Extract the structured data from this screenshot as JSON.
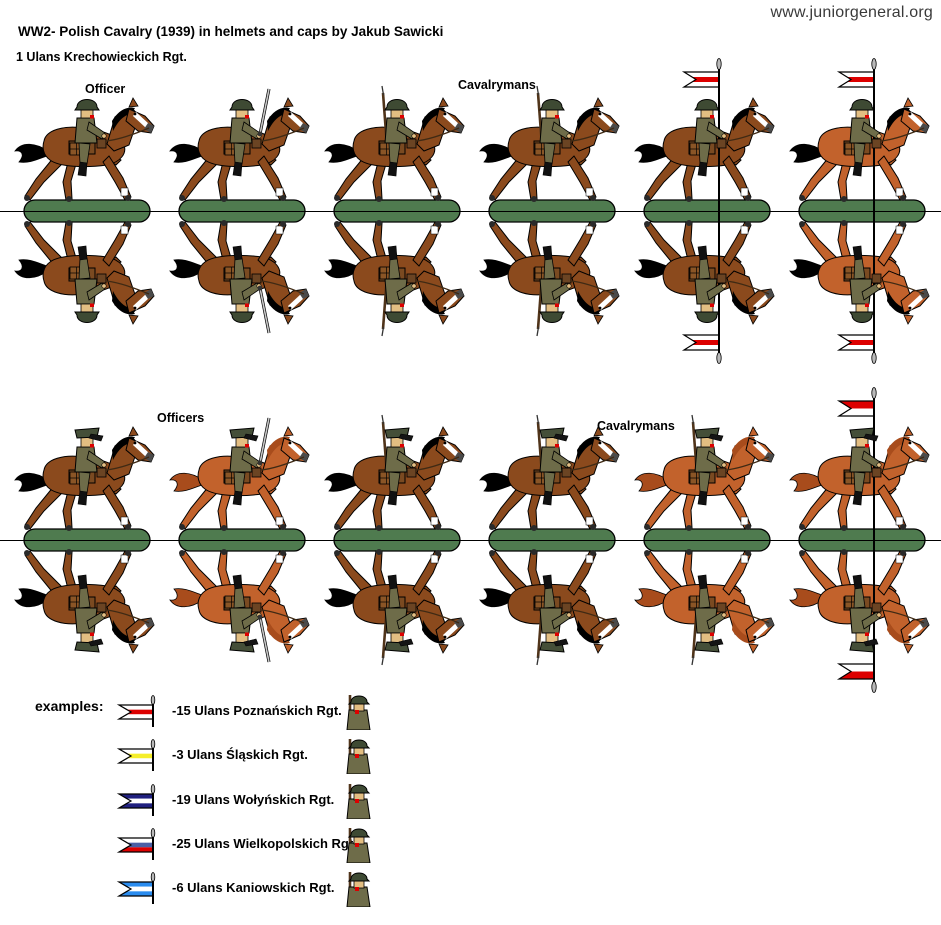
{
  "site": "www.juniorgeneral.org",
  "title": "WW2- Polish Cavalry (1939) in helmets and caps by Jakub Sawicki",
  "subtitle": "1 Ulans Krechowieckich Rgt.",
  "colors": {
    "horse_brown": "#8B4A1D",
    "horse_chestnut": "#C2622C",
    "mane_black": "#000000",
    "mane_chestnut": "#A84C1C",
    "base_green": "#4F7B4F",
    "uniform": "#6E6C49",
    "helmet": "#3E4A33",
    "cap": "#454F38",
    "face": "#E3BE82",
    "red": "#DD0000",
    "hoof": "#2a2a2a",
    "saddle": "#7a4a21",
    "bag": "#8a5526"
  },
  "rows": [
    {
      "labels": [
        {
          "text": "Officer"
        },
        {
          "text": "Cavalrymans"
        }
      ],
      "figures": [
        {
          "headgear": "helmet",
          "horse": "brown",
          "mane": "black",
          "weapon": "none"
        },
        {
          "headgear": "helmet",
          "horse": "brown",
          "mane": "black",
          "weapon": "saber"
        },
        {
          "headgear": "helmet",
          "horse": "brown",
          "mane": "black",
          "weapon": "rifle"
        },
        {
          "headgear": "helmet",
          "horse": "brown",
          "mane": "black",
          "weapon": "rifle"
        },
        {
          "headgear": "helmet",
          "horse": "brown",
          "mane": "black",
          "weapon": "lance",
          "pennant": [
            "#FFFFFF",
            "#DD0000",
            "#FFFFFF"
          ]
        },
        {
          "headgear": "helmet",
          "horse": "chestnut",
          "mane": "black",
          "weapon": "lance",
          "pennant": [
            "#FFFFFF",
            "#DD0000",
            "#FFFFFF"
          ]
        }
      ]
    },
    {
      "labels": [
        {
          "text": "Officers"
        },
        {
          "text": "Cavalrymans"
        }
      ],
      "figures": [
        {
          "headgear": "cap",
          "horse": "brown",
          "mane": "black",
          "weapon": "none"
        },
        {
          "headgear": "cap",
          "horse": "chestnut",
          "mane": "chestnut",
          "weapon": "saber"
        },
        {
          "headgear": "cap",
          "horse": "brown",
          "mane": "black",
          "weapon": "rifle"
        },
        {
          "headgear": "cap",
          "horse": "brown",
          "mane": "black",
          "weapon": "rifle"
        },
        {
          "headgear": "cap",
          "horse": "chestnut",
          "mane": "chestnut",
          "weapon": "rifle"
        },
        {
          "headgear": "cap",
          "horse": "chestnut",
          "mane": "chestnut",
          "weapon": "lance",
          "pennant": [
            "#DD0000",
            "#FFFFFF"
          ]
        }
      ]
    }
  ],
  "examples": {
    "heading": "examples:",
    "items": [
      {
        "flag": [
          "#FFFFFF",
          "#DD0000",
          "#FFFFFF"
        ],
        "flag_icon": "pennant-white-red-white-icon",
        "label": "-15 Ulans Poznańskich Rgt."
      },
      {
        "flag": [
          "#FFFFFF",
          "#F5EE2A",
          "#FFFFFF"
        ],
        "flag_icon": "pennant-white-yellow-white-icon",
        "label": "-3 Ulans Śląskich Rgt."
      },
      {
        "flag": [
          "#20207F",
          "#FFFFFF",
          "#20207F"
        ],
        "flag_icon": "pennant-navy-white-navy-icon",
        "label": "-19 Ulans Wołyńskich Rgt."
      },
      {
        "flag": [
          "#FFFFFF",
          "#4A5FA5",
          "#DD0000"
        ],
        "flag_icon": "pennant-white-blue-red-icon",
        "label": "-25 Ulans Wielkopolskich Rgt."
      },
      {
        "flag": [
          "#2A8CEF",
          "#FFFFFF",
          "#2A8CEF"
        ],
        "flag_icon": "pennant-blue-white-blue-icon",
        "label": "-6 Ulans Kaniowskich Rgt."
      }
    ]
  }
}
